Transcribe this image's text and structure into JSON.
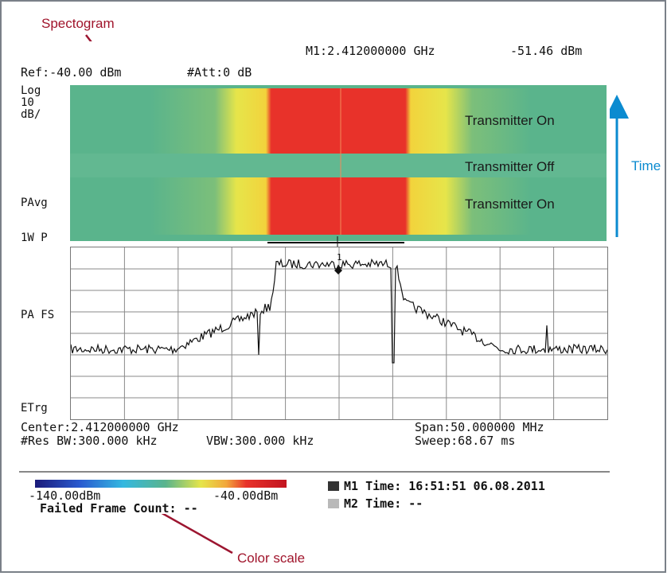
{
  "callouts": {
    "spectrogram": "Spectogram",
    "color_scale": "Color scale",
    "time": "Time"
  },
  "header": {
    "marker": "M1:2.412000000 GHz",
    "marker_level": "-51.46 dBm",
    "ref": "Ref:-40.00 dBm",
    "att": "#Att:0 dB"
  },
  "side_labels": {
    "log": "Log",
    "ten": "10",
    "db_div": "dB/",
    "pavg": "PAvg",
    "w1p": "1W P",
    "pafs": "PA FS",
    "etrg": "ETrg"
  },
  "spectrogram": {
    "tx_on_1": "Transmitter On",
    "tx_off": "Transmitter Off",
    "tx_on_2": "Transmitter On",
    "colors": {
      "background": "#5ab48c",
      "hot": "#e8322a",
      "warm": "#f0e23c"
    }
  },
  "marker_number": "1",
  "footer": {
    "center": "Center:2.412000000 GHz",
    "span": "Span:50.000000 MHz",
    "res_bw": "#Res BW:300.000 kHz",
    "vbw": "VBW:300.000 kHz",
    "sweep": "Sweep:68.67 ms"
  },
  "color_bar": {
    "min": "-140.00dBm",
    "max": "-40.00dBm",
    "failed_frame": "Failed Frame Count: --",
    "m1_time": "M1 Time: 16:51:51 06.08.2011",
    "m2_time": "M2 Time: --"
  }
}
